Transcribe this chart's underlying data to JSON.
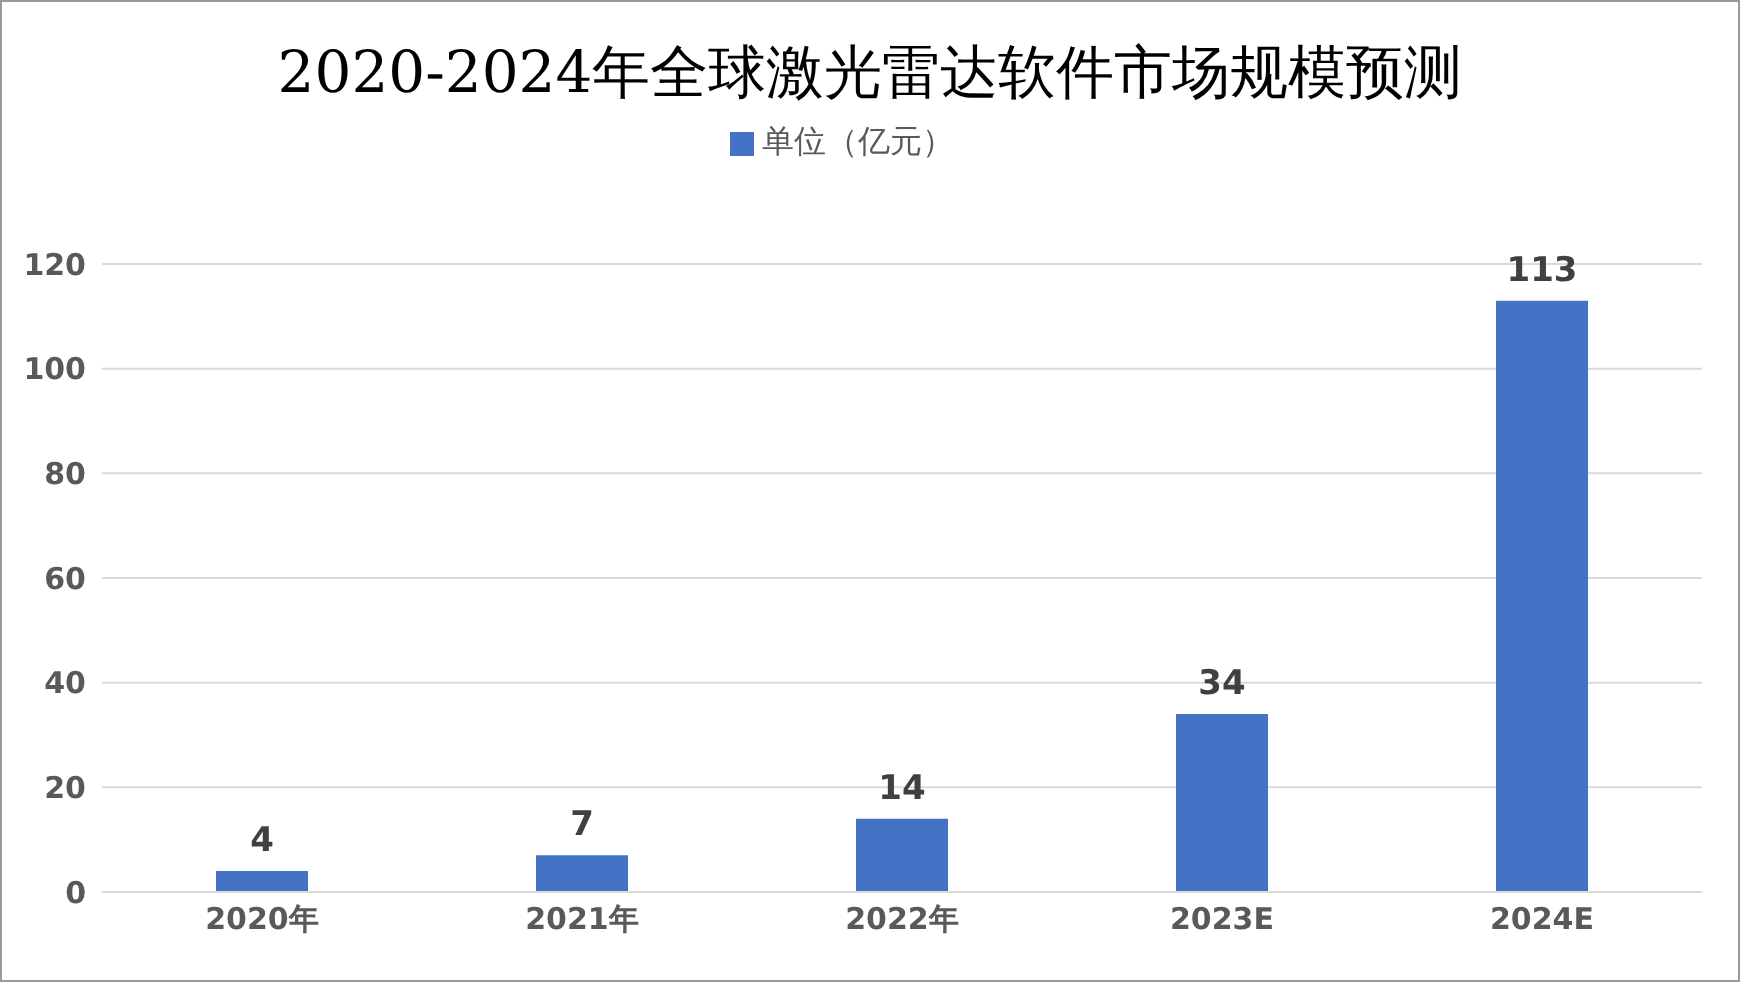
{
  "chart_data": {
    "type": "bar",
    "title": "2020-2024年全球激光雷达软件市场规模预测",
    "categories": [
      "2020年",
      "2021年",
      "2022年",
      "2023E",
      "2024E"
    ],
    "series": [
      {
        "name": "单位（亿元）",
        "color": "#4472c4",
        "values": [
          4,
          7,
          14,
          34,
          113
        ]
      }
    ],
    "ylim": [
      0,
      120
    ],
    "yticks": [
      0,
      20,
      40,
      60,
      80,
      100,
      120
    ],
    "grid": "y",
    "legend": "top",
    "data_labels": true
  }
}
